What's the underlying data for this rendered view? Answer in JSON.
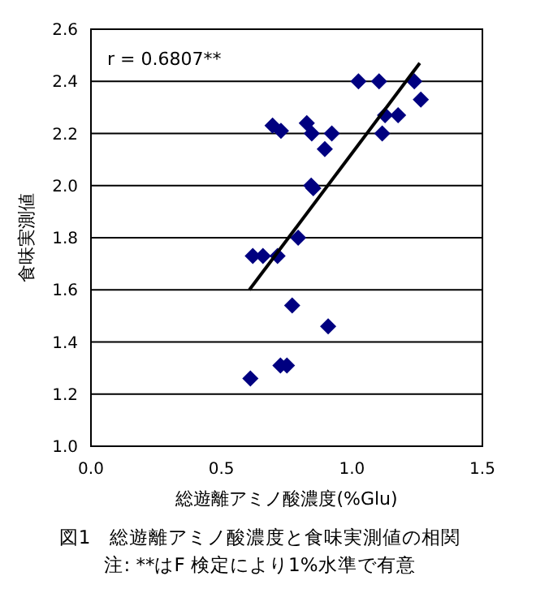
{
  "chart_data": {
    "type": "scatter",
    "title": "図1　総遊離アミノ酸濃度と食味実測値の相関",
    "xlabel": "総遊離アミノ酸濃度(%Glu)",
    "ylabel": "食味実測値",
    "annotations": [
      "r = 0.6807**",
      "注: **はF 検定により1%水準で有意"
    ],
    "xlim": [
      0,
      1.5
    ],
    "ylim": [
      1.0,
      2.6
    ],
    "xticks": [
      {
        "value": 0,
        "label": "0.0"
      },
      {
        "value": 0.5,
        "label": "0.5"
      },
      {
        "value": 1,
        "label": "1.0"
      },
      {
        "value": 1.5,
        "label": "1.5"
      }
    ],
    "yticks": [
      {
        "value": 1,
        "label": "1.0"
      },
      {
        "value": 1.2,
        "label": "1.2"
      },
      {
        "value": 1.4,
        "label": "1.4"
      },
      {
        "value": 1.6,
        "label": "1.6"
      },
      {
        "value": 1.8,
        "label": "1.8"
      },
      {
        "value": 2,
        "label": "2.0"
      },
      {
        "value": 2.2,
        "label": "2.2"
      },
      {
        "value": 2.4,
        "label": "2.4"
      },
      {
        "value": 2.6,
        "label": "2.6"
      }
    ],
    "grid": "y",
    "series": [
      {
        "marker": "diamond",
        "color": "#000080",
        "x": [
          1.025,
          1.104,
          1.239,
          1.264,
          1.127,
          1.177,
          1.116,
          0.696,
          0.728,
          0.827,
          0.846,
          0.923,
          0.896,
          0.844,
          0.852,
          0.794,
          0.62,
          0.659,
          0.715,
          0.771,
          0.909,
          0.726,
          0.751,
          0.611
        ],
        "values": [
          2.4,
          2.4,
          2.4,
          2.33,
          2.27,
          2.27,
          2.2,
          2.23,
          2.21,
          2.24,
          2.2,
          2.2,
          2.14,
          2.0,
          1.99,
          1.8,
          1.73,
          1.73,
          1.73,
          1.54,
          1.46,
          1.31,
          1.31,
          1.26
        ]
      },
      {
        "type": "line",
        "color": "#000000",
        "x": [
          0.607,
          1.26
        ],
        "values": [
          1.6,
          2.47
        ]
      }
    ]
  }
}
